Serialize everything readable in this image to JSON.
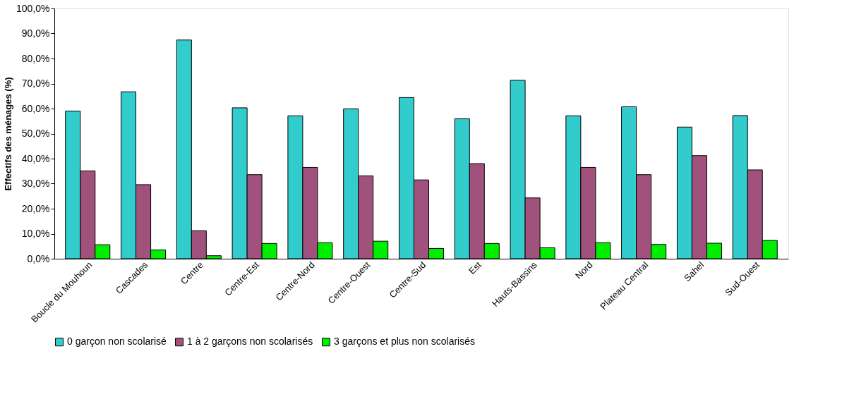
{
  "chart_data": {
    "type": "bar",
    "ylabel": "Effectifs des ménages (%)",
    "categories": [
      "Boucle du Mouhoun",
      "Cascades",
      "Centre",
      "Centre-Est",
      "Centre-Nord",
      "Centre-Ouest",
      "Centre-Sud",
      "Est",
      "Hauts-Bassins",
      "Nord",
      "Plateau Central",
      "Sahel",
      "Sud-Ouest"
    ],
    "series": [
      {
        "name": "0 garçon non scolarisé",
        "color": "#33cccc",
        "values": [
          59.0,
          66.7,
          87.4,
          60.3,
          57.1,
          59.9,
          64.4,
          55.9,
          71.3,
          57.1,
          60.7,
          52.6,
          57.2
        ]
      },
      {
        "name": "1 à 2 garçons non scolarisés",
        "color": "#a0527c",
        "values": [
          35.1,
          29.6,
          11.2,
          33.6,
          36.5,
          33.1,
          31.5,
          38.0,
          24.3,
          36.5,
          33.6,
          41.2,
          35.5
        ]
      },
      {
        "name": "3 garçons et plus non scolarisés",
        "color": "#00ee00",
        "values": [
          5.6,
          3.5,
          1.2,
          6.1,
          6.4,
          7.0,
          4.1,
          6.1,
          4.4,
          6.4,
          5.7,
          6.2,
          7.3
        ]
      }
    ],
    "ylim": [
      0,
      100
    ],
    "yticks": [
      {
        "value": 0,
        "label": "0,0%"
      },
      {
        "value": 10,
        "label": "10,0%"
      },
      {
        "value": 20,
        "label": "20,0%"
      },
      {
        "value": 30,
        "label": "30,0%"
      },
      {
        "value": 40,
        "label": "40,0%"
      },
      {
        "value": 50,
        "label": "50,0%"
      },
      {
        "value": 60,
        "label": "60,0%"
      },
      {
        "value": 70,
        "label": "70,0%"
      },
      {
        "value": 80,
        "label": "80,0%"
      },
      {
        "value": 90,
        "label": "90,0%"
      },
      {
        "value": 100,
        "label": "100,0%"
      }
    ],
    "grid": false,
    "legend": "bottom"
  }
}
